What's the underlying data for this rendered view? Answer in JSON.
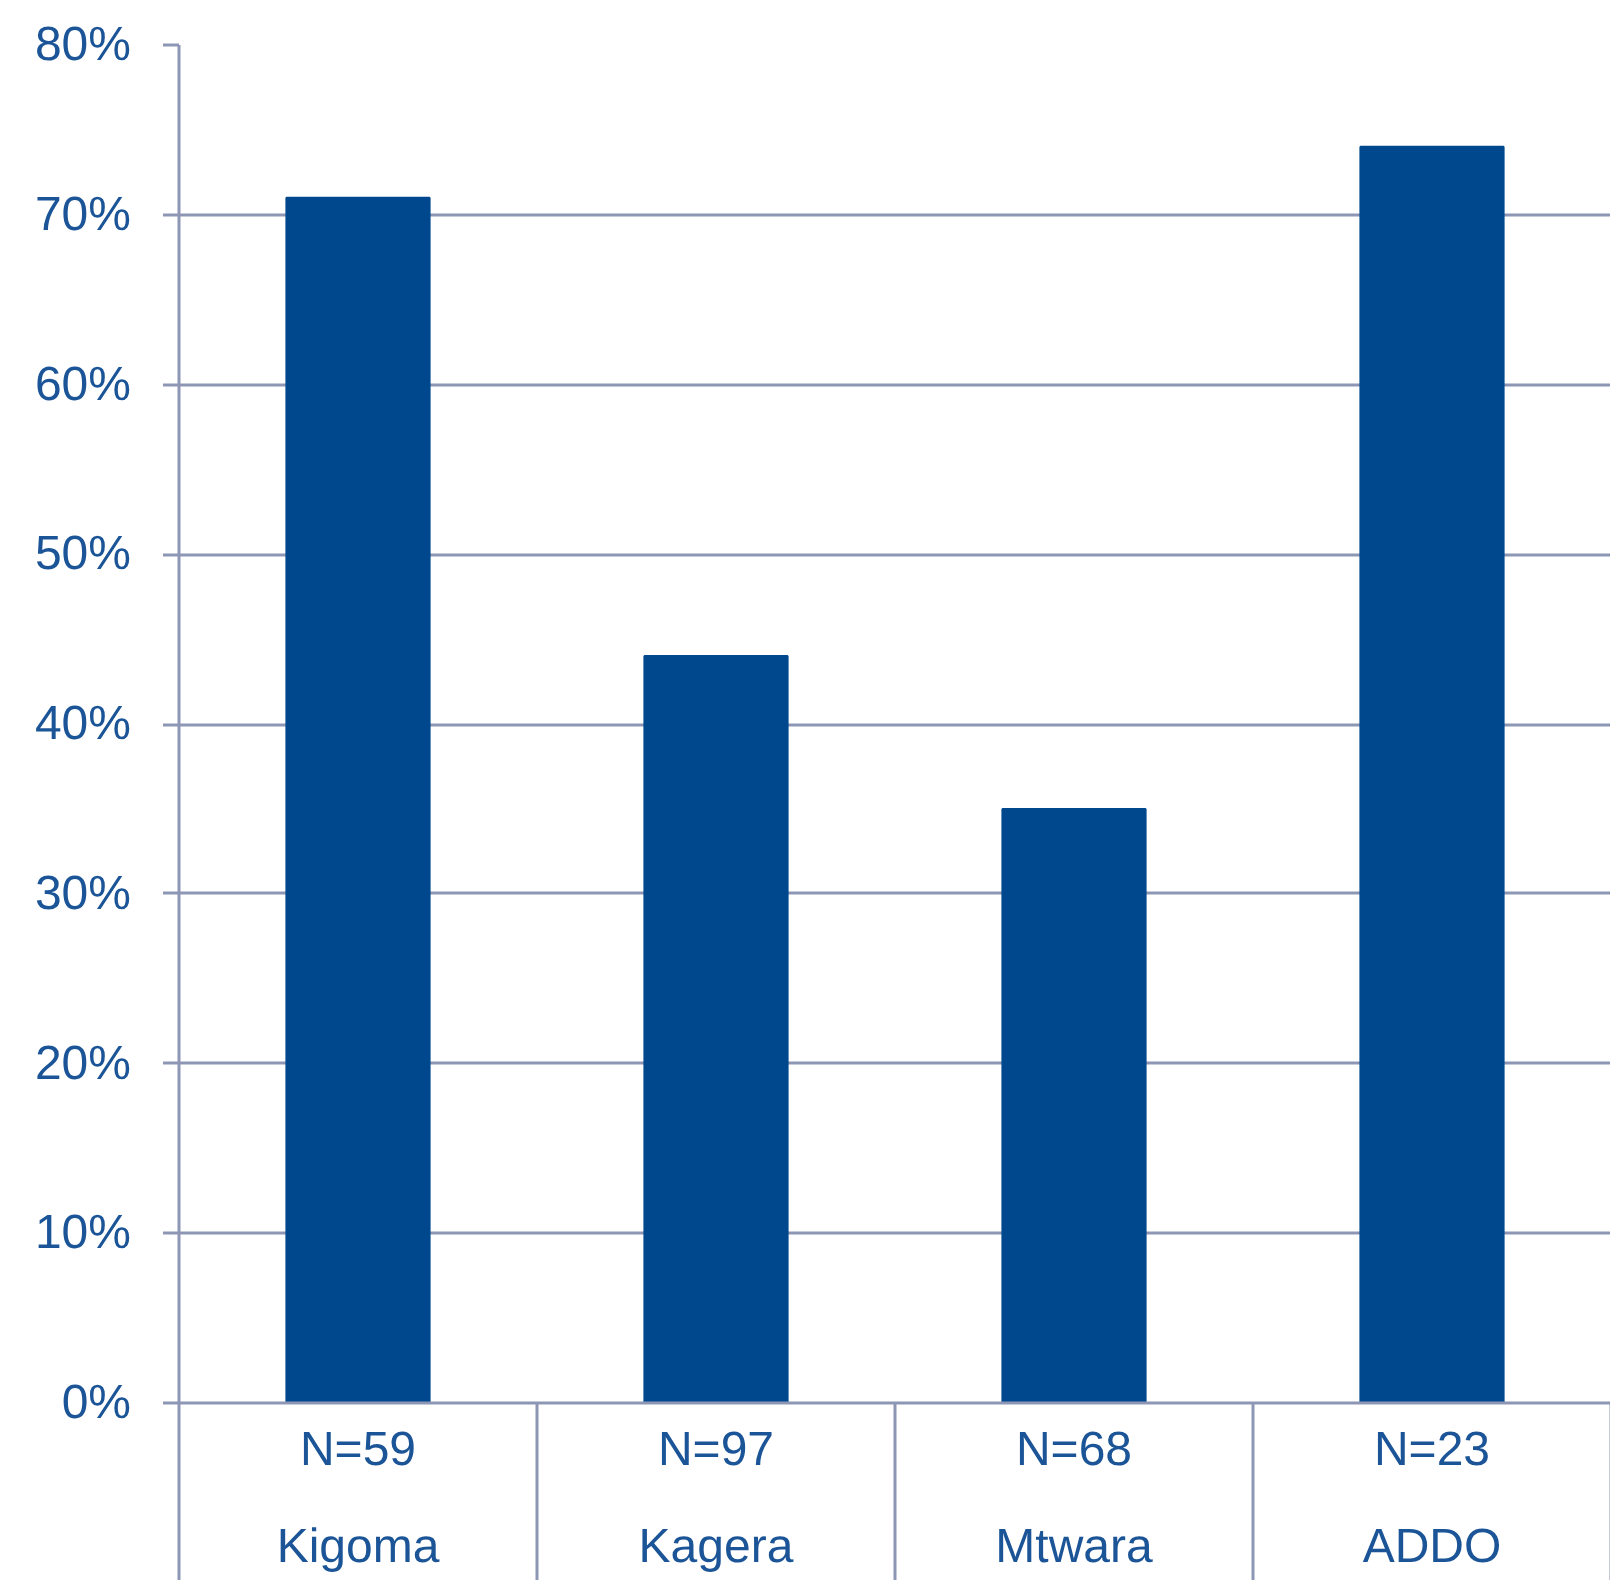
{
  "chart_data": {
    "type": "bar",
    "categories": [
      "N=59\nKigoma",
      "N=97\nKagera",
      "N=68\nMtwara",
      "N=23\nADDO"
    ],
    "values": [
      71,
      44,
      35,
      74
    ],
    "color": "#00488d",
    "ylim": [
      0,
      80
    ],
    "yticks": [
      {
        "value": 0,
        "label": "0%"
      },
      {
        "value": 10,
        "label": "10%"
      },
      {
        "value": 20,
        "label": "20%"
      },
      {
        "value": 30,
        "label": "30%"
      },
      {
        "value": 40,
        "label": "40%"
      },
      {
        "value": 50,
        "label": "50%"
      },
      {
        "value": 60,
        "label": "60%"
      },
      {
        "value": 70,
        "label": "70%"
      },
      {
        "value": 80,
        "label": "80%"
      }
    ],
    "grid": "y"
  }
}
